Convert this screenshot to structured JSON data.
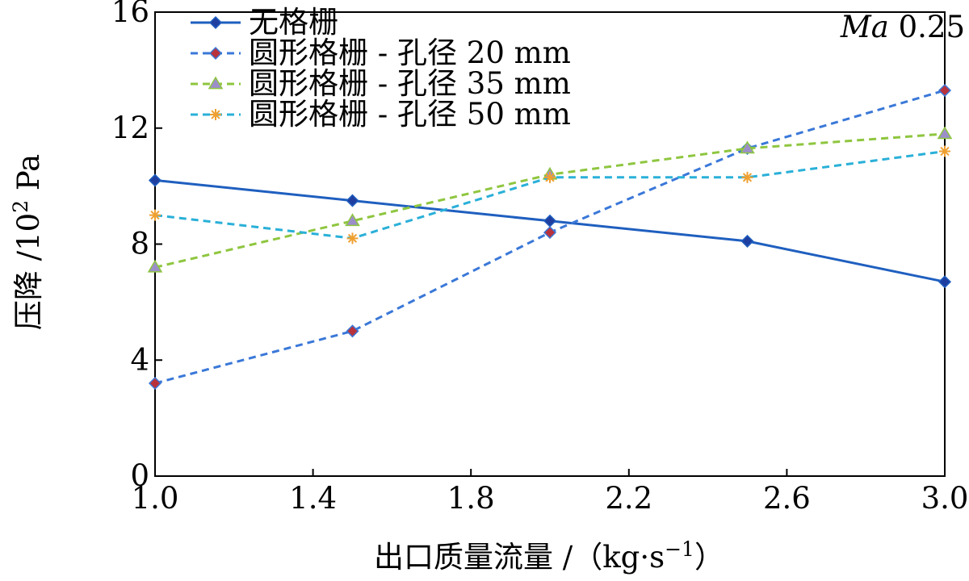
{
  "chart_data": {
    "type": "line",
    "annotation": {
      "italic": "Ma",
      "rest": " 0.25"
    },
    "xlabel": {
      "main": "出口质量流量 /（kg·s",
      "sup": "−1",
      "end": "）"
    },
    "ylabel": {
      "main": "压降 /10",
      "sup": "2",
      "end": " Pa"
    },
    "xlim": [
      1.0,
      3.0
    ],
    "ylim": [
      0,
      16
    ],
    "xticks": [
      "1.0",
      "1.4",
      "1.8",
      "2.2",
      "2.6",
      "3.0"
    ],
    "yticks": [
      "0",
      "4",
      "8",
      "12",
      "16"
    ],
    "x": [
      1.0,
      1.5,
      2.0,
      2.5,
      3.0
    ],
    "grid": false,
    "legend_position": "top-left",
    "series": [
      {
        "name": "无格栅",
        "values": [
          10.2,
          9.5,
          8.8,
          8.1,
          6.7
        ],
        "color": "#1f5fbf",
        "dash": "solid",
        "marker": "diamond",
        "marker_color": "#1f3fa0"
      },
      {
        "name": "圆形格栅 - 孔径 20 mm",
        "values": [
          3.2,
          5.0,
          8.4,
          11.3,
          13.3
        ],
        "color": "#3a78d8",
        "dash": "dashed",
        "marker": "diamond",
        "marker_color": "#b8323c"
      },
      {
        "name": "圆形格栅 - 孔径 35 mm",
        "values": [
          7.2,
          8.8,
          10.4,
          11.3,
          11.8
        ],
        "color": "#8ec63f",
        "dash": "dashed",
        "marker": "triangle",
        "marker_color": "#9c8fc9"
      },
      {
        "name": "圆形格栅 - 孔径 50 mm",
        "values": [
          9.0,
          8.2,
          10.3,
          10.3,
          11.2
        ],
        "color": "#2ab0d8",
        "dash": "dashed",
        "marker": "star",
        "marker_color": "#f0a030"
      }
    ]
  }
}
